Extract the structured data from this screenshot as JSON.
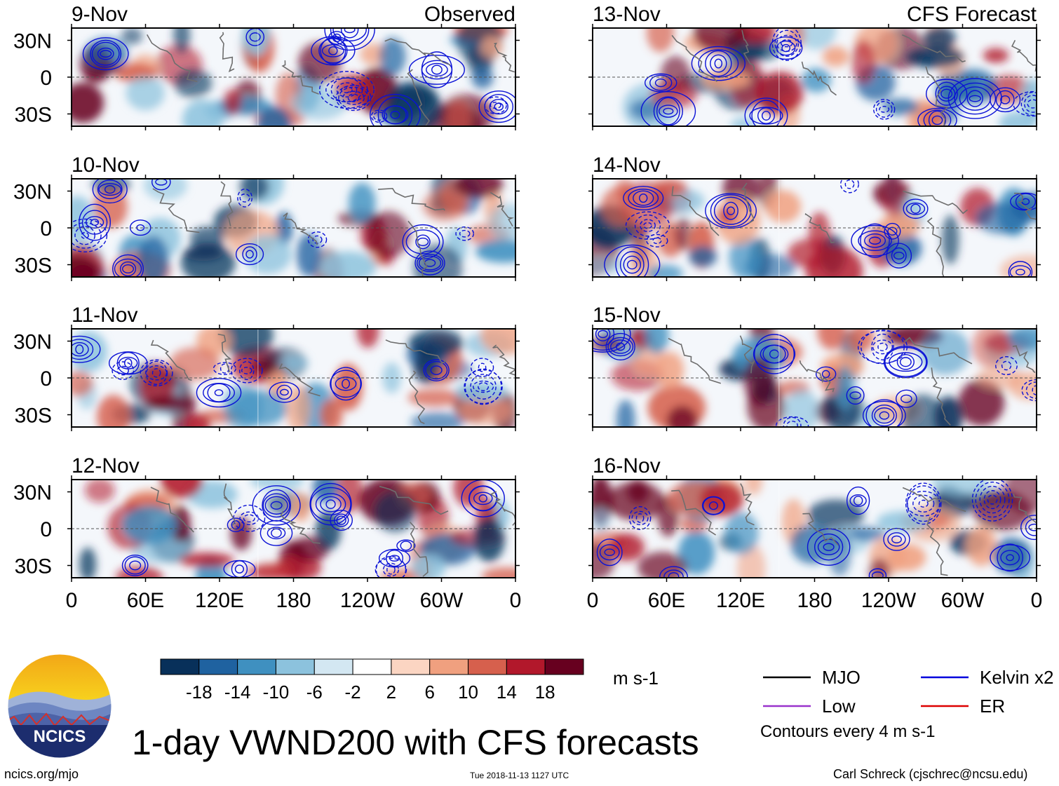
{
  "chart_data": {
    "type": "heatmap",
    "title": "1-day VWND200 with CFS forecasts",
    "variable": "VWND200",
    "units": "m s-1",
    "columns": [
      {
        "heading": "Observed",
        "panels": [
          {
            "date": "9-Nov"
          },
          {
            "date": "10-Nov"
          },
          {
            "date": "11-Nov"
          },
          {
            "date": "12-Nov"
          }
        ]
      },
      {
        "heading": "CFS Forecast",
        "panels": [
          {
            "date": "13-Nov"
          },
          {
            "date": "14-Nov"
          },
          {
            "date": "15-Nov"
          },
          {
            "date": "16-Nov"
          }
        ]
      }
    ],
    "x_ticks": [
      "0",
      "60E",
      "120E",
      "180",
      "120W",
      "60W",
      "0"
    ],
    "x_range_deg": [
      0,
      360
    ],
    "y_ticks": [
      "30N",
      "0",
      "30S"
    ],
    "y_range_deg": [
      -40,
      40
    ],
    "colorbar": {
      "levels": [
        -18,
        -14,
        -10,
        -6,
        -2,
        2,
        6,
        10,
        14,
        18
      ],
      "tick_labels": [
        "-18",
        "-14",
        "-10",
        "-6",
        "-2",
        "2",
        "6",
        "10",
        "14",
        "18"
      ],
      "colors": [
        "#08305a",
        "#1f62a0",
        "#3f90c0",
        "#8cc2dd",
        "#d3e7f2",
        "#ffffff",
        "#fbd5c2",
        "#f0a07f",
        "#d6604d",
        "#b2182b",
        "#67001f"
      ]
    },
    "legend": [
      {
        "label": "MJO",
        "color": "#000000"
      },
      {
        "label": "Kelvin x2",
        "color": "#0000dd"
      },
      {
        "label": "Low",
        "color": "#9933cc"
      },
      {
        "label": "ER",
        "color": "#dd0000"
      }
    ],
    "contour_note": "Contours every 4 m s-1"
  },
  "footer": {
    "logo_text": "NCICS",
    "site": "ncics.org/mjo",
    "timestamp": "Tue 2018-11-13 1127 UTC",
    "author": "Carl Schreck (cjschrec@ncsu.edu)"
  }
}
